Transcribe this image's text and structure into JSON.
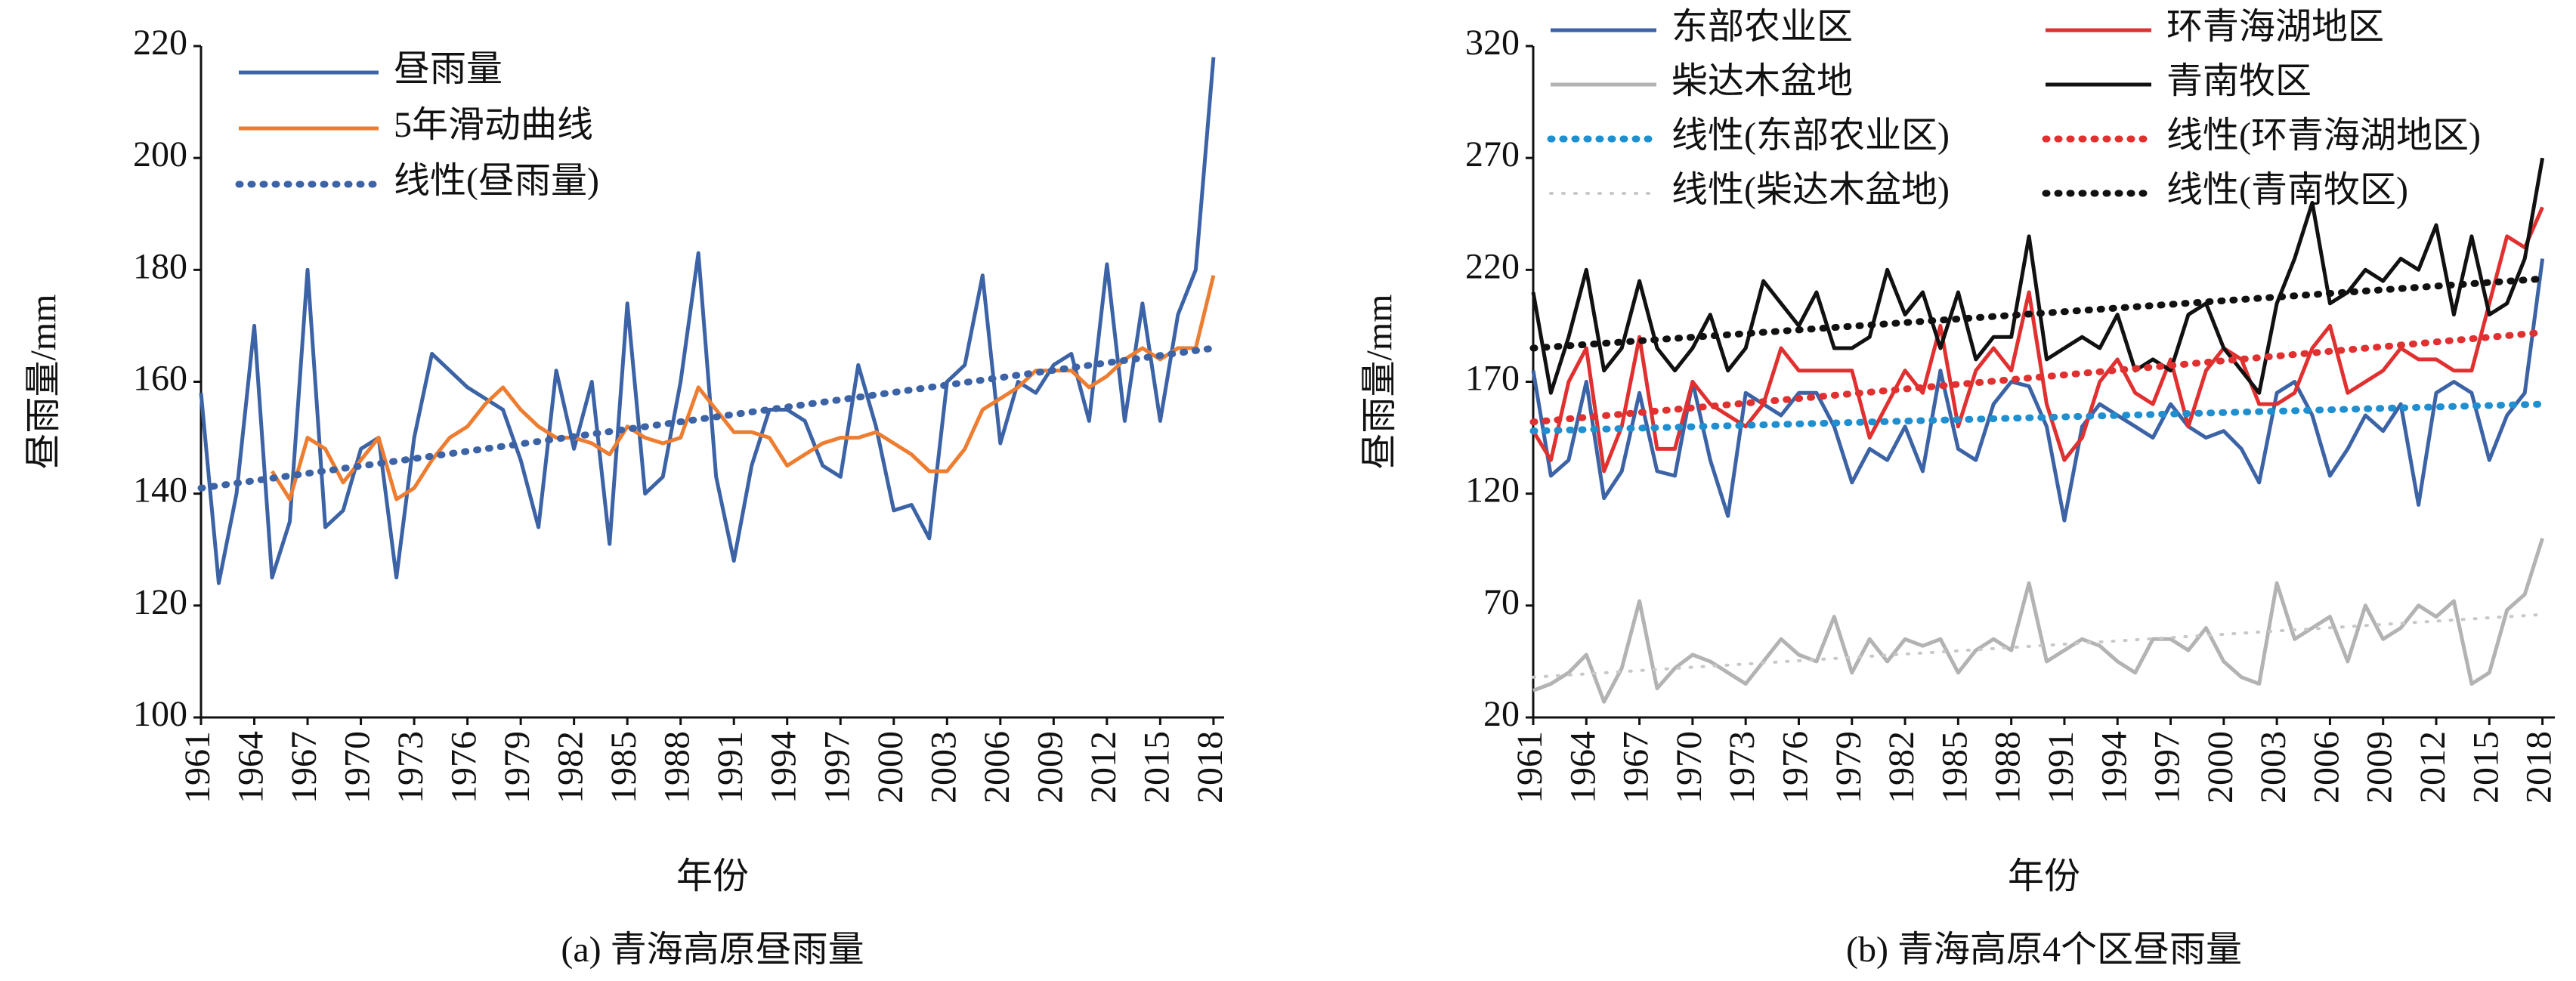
{
  "chart_data": [
    {
      "type": "line",
      "caption": "(a) 青海高原昼雨量",
      "xlabel": "年份",
      "ylabel": "昼雨量/mm",
      "x": [
        1961,
        1962,
        1963,
        1964,
        1965,
        1966,
        1967,
        1968,
        1969,
        1970,
        1971,
        1972,
        1973,
        1974,
        1975,
        1976,
        1977,
        1978,
        1979,
        1980,
        1981,
        1982,
        1983,
        1984,
        1985,
        1986,
        1987,
        1988,
        1989,
        1990,
        1991,
        1992,
        1993,
        1994,
        1995,
        1996,
        1997,
        1998,
        1999,
        2000,
        2001,
        2002,
        2003,
        2004,
        2005,
        2006,
        2007,
        2008,
        2009,
        2010,
        2011,
        2012,
        2013,
        2014,
        2015,
        2016,
        2017,
        2018
      ],
      "xlim": [
        1961,
        2018.6
      ],
      "xticks": [
        1961,
        1964,
        1967,
        1970,
        1973,
        1976,
        1979,
        1982,
        1985,
        1988,
        1991,
        1994,
        1997,
        2000,
        2003,
        2006,
        2009,
        2012,
        2015,
        2018
      ],
      "ylim": [
        100,
        220
      ],
      "yticks": [
        100,
        120,
        140,
        160,
        180,
        200,
        220
      ],
      "legend": "upper left",
      "legend_columns": 1,
      "series": [
        {
          "name": "昼雨量",
          "color": "#3c63a6",
          "style": "solid",
          "values": [
            158,
            124,
            140,
            170,
            125,
            135,
            180,
            134,
            137,
            148,
            150,
            125,
            150,
            165,
            162,
            159,
            157,
            155,
            146,
            134,
            162,
            148,
            160,
            131,
            174,
            140,
            143,
            160,
            183,
            143,
            128,
            145,
            155,
            155,
            153,
            145,
            143,
            163,
            152,
            137,
            138,
            132,
            160,
            163,
            179,
            149,
            160,
            158,
            163,
            165,
            153,
            181,
            153,
            174,
            153,
            172,
            180,
            218
          ]
        },
        {
          "name": "5年滑动曲线",
          "color": "#ed7d31",
          "style": "solid",
          "values": [
            null,
            null,
            null,
            null,
            144,
            139,
            150,
            148,
            142,
            146,
            150,
            139,
            141,
            146,
            150,
            152,
            156,
            159,
            155,
            152,
            150,
            150,
            149,
            147,
            152,
            150,
            149,
            150,
            159,
            155,
            151,
            151,
            150,
            145,
            147,
            149,
            150,
            150,
            151,
            149,
            147,
            144,
            144,
            148,
            155,
            157,
            159,
            162,
            162,
            162,
            159,
            161,
            164,
            166,
            164,
            166,
            166,
            179
          ]
        },
        {
          "name": "线性(昼雨量)",
          "color": "#3c63a6",
          "style": "dotted",
          "x": [
            1961,
            2018
          ],
          "values": [
            141,
            166
          ]
        }
      ]
    },
    {
      "type": "line",
      "caption": "(b) 青海高原4个区昼雨量",
      "xlabel": "年份",
      "ylabel": "昼雨量/mm",
      "x": [
        1961,
        1962,
        1963,
        1964,
        1965,
        1966,
        1967,
        1968,
        1969,
        1970,
        1971,
        1972,
        1973,
        1974,
        1975,
        1976,
        1977,
        1978,
        1979,
        1980,
        1981,
        1982,
        1983,
        1984,
        1985,
        1986,
        1987,
        1988,
        1989,
        1990,
        1991,
        1992,
        1993,
        1994,
        1995,
        1996,
        1997,
        1998,
        1999,
        2000,
        2001,
        2002,
        2003,
        2004,
        2005,
        2006,
        2007,
        2008,
        2009,
        2010,
        2011,
        2012,
        2013,
        2014,
        2015,
        2016,
        2017,
        2018
      ],
      "xlim": [
        1961,
        2018.7
      ],
      "xticks": [
        1961,
        1964,
        1967,
        1970,
        1973,
        1976,
        1979,
        1982,
        1985,
        1988,
        1991,
        1994,
        1997,
        2000,
        2003,
        2006,
        2009,
        2012,
        2015,
        2018
      ],
      "ylim": [
        20,
        320
      ],
      "yticks": [
        20,
        70,
        120,
        170,
        220,
        270,
        320
      ],
      "legend": "upper left",
      "legend_columns": 2,
      "series": [
        {
          "name": "东部农业区",
          "color": "#3c63a6",
          "style": "solid",
          "values": [
            175,
            128,
            135,
            170,
            118,
            130,
            165,
            130,
            128,
            170,
            135,
            110,
            165,
            160,
            155,
            165,
            165,
            150,
            125,
            140,
            135,
            150,
            130,
            175,
            140,
            135,
            160,
            170,
            168,
            150,
            108,
            150,
            160,
            155,
            150,
            145,
            160,
            150,
            145,
            148,
            140,
            125,
            165,
            170,
            155,
            128,
            140,
            155,
            148,
            160,
            115,
            165,
            170,
            165,
            135,
            155,
            165,
            225
          ]
        },
        {
          "name": "环青海湖地区",
          "color": "#e03030",
          "style": "solid",
          "values": [
            148,
            135,
            170,
            185,
            130,
            150,
            190,
            140,
            140,
            170,
            160,
            155,
            150,
            160,
            185,
            175,
            175,
            175,
            175,
            145,
            160,
            175,
            165,
            195,
            150,
            175,
            185,
            175,
            210,
            160,
            135,
            145,
            170,
            180,
            165,
            160,
            180,
            150,
            175,
            185,
            180,
            160,
            160,
            165,
            185,
            195,
            165,
            170,
            175,
            185,
            180,
            180,
            175,
            175,
            205,
            235,
            230,
            248
          ]
        },
        {
          "name": "柴达木盆地",
          "color": "#b3b3b3",
          "style": "solid",
          "values": [
            32,
            35,
            40,
            48,
            27,
            42,
            72,
            33,
            42,
            48,
            45,
            40,
            35,
            45,
            55,
            48,
            45,
            65,
            40,
            55,
            45,
            55,
            52,
            55,
            40,
            50,
            55,
            50,
            80,
            45,
            50,
            55,
            52,
            45,
            40,
            55,
            55,
            50,
            60,
            45,
            38,
            35,
            80,
            55,
            60,
            65,
            45,
            70,
            55,
            60,
            70,
            65,
            72,
            35,
            40,
            68,
            75,
            100
          ]
        },
        {
          "name": "青南牧区",
          "color": "#111111",
          "style": "solid",
          "values": [
            210,
            165,
            190,
            220,
            175,
            185,
            215,
            185,
            175,
            185,
            200,
            175,
            185,
            215,
            205,
            195,
            210,
            185,
            185,
            190,
            220,
            200,
            210,
            185,
            210,
            180,
            190,
            190,
            235,
            180,
            185,
            190,
            185,
            200,
            175,
            180,
            175,
            200,
            205,
            185,
            175,
            165,
            205,
            225,
            250,
            205,
            210,
            220,
            215,
            225,
            220,
            240,
            200,
            235,
            200,
            205,
            225,
            270
          ]
        },
        {
          "name": "线性(东部农业区)",
          "color": "#1f8fcf",
          "style": "dotted",
          "x": [
            1961,
            2018
          ],
          "values": [
            148,
            160
          ]
        },
        {
          "name": "线性(环青海湖地区)",
          "color": "#e03030",
          "style": "dotted",
          "x": [
            1961,
            2018
          ],
          "values": [
            152,
            192
          ]
        },
        {
          "name": "线性(柴达木盆地)",
          "color": "#c8c8c8",
          "style": "dotted",
          "x": [
            1961,
            2018
          ],
          "values": [
            38,
            66
          ]
        },
        {
          "name": "线性(青南牧区)",
          "color": "#111111",
          "style": "dotted",
          "x": [
            1961,
            2018
          ],
          "values": [
            185,
            216
          ]
        }
      ]
    }
  ]
}
